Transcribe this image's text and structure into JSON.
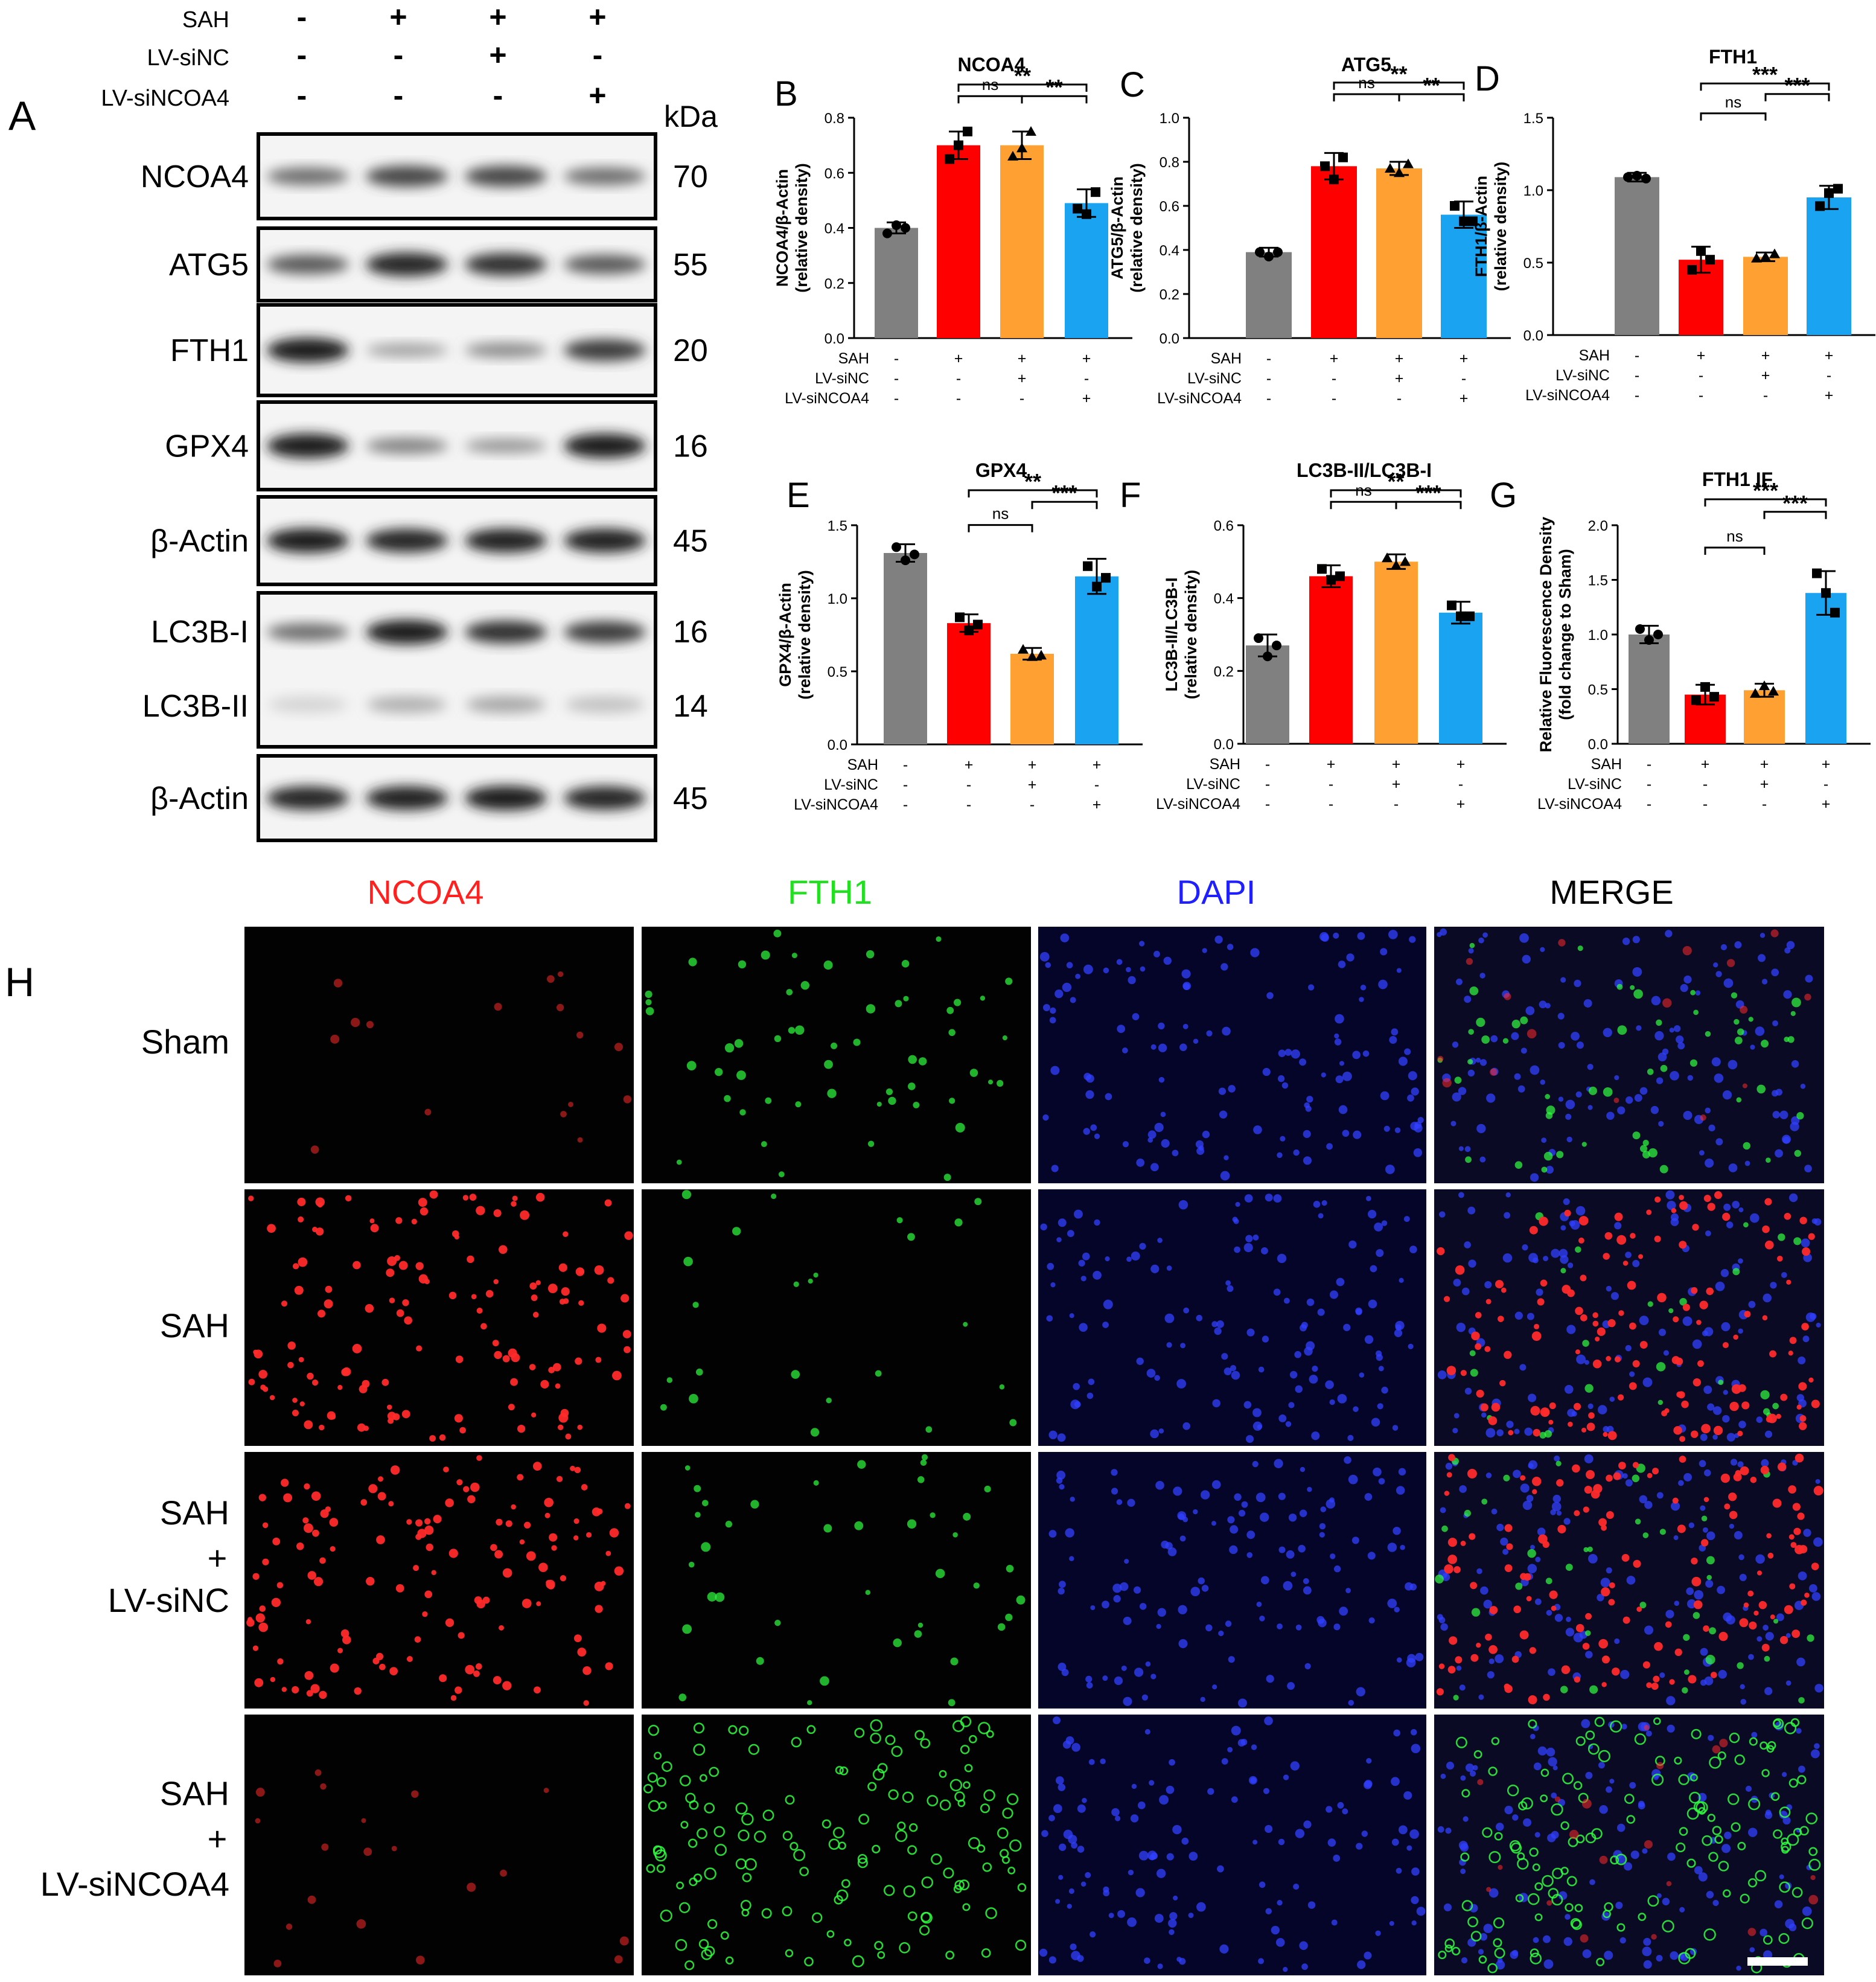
{
  "panel_letters": {
    "A": "A",
    "B": "B",
    "C": "C",
    "D": "D",
    "E": "E",
    "F": "F",
    "G": "G",
    "H": "H"
  },
  "western_blot": {
    "condition_labels": [
      "SAH",
      "LV-siNC",
      "LV-siNCOA4"
    ],
    "condition_signs": [
      [
        "-",
        "+",
        "+",
        "+"
      ],
      [
        "-",
        "-",
        "+",
        "-"
      ],
      [
        "-",
        "-",
        "-",
        "+"
      ]
    ],
    "kda_label": "kDa",
    "bands": [
      {
        "protein": "NCOA4",
        "kda": "70",
        "intensity": [
          0.55,
          0.75,
          0.75,
          0.55
        ]
      },
      {
        "protein": "ATG5",
        "kda": "55",
        "intensity": [
          0.65,
          0.9,
          0.85,
          0.65
        ]
      },
      {
        "protein": "FTH1",
        "kda": "20",
        "intensity": [
          0.95,
          0.3,
          0.4,
          0.8
        ]
      },
      {
        "protein": "GPX4",
        "kda": "16",
        "intensity": [
          0.95,
          0.45,
          0.35,
          0.95
        ]
      },
      {
        "protein": "β-Actin",
        "kda": "45",
        "intensity": [
          0.95,
          0.9,
          0.92,
          0.92
        ]
      },
      {
        "protein": "LC3B-I",
        "kda": "16",
        "intensity": [
          0.55,
          0.95,
          0.85,
          0.8
        ],
        "protein2": "LC3B-II",
        "kda2": "14",
        "intensity2": [
          0.15,
          0.35,
          0.4,
          0.25
        ]
      },
      {
        "protein": "β-Actin",
        "kda": "45",
        "intensity": [
          0.9,
          0.92,
          0.95,
          0.9
        ]
      }
    ]
  },
  "treatment_rows": [
    "SAH",
    "LV-siNC",
    "LV-siNCOA4"
  ],
  "treatment_signs": [
    [
      "-",
      "+",
      "+",
      "+"
    ],
    [
      "-",
      "-",
      "+",
      "-"
    ],
    [
      "-",
      "-",
      "-",
      "+"
    ]
  ],
  "colors": {
    "sham": "#808080",
    "sah": "#ff0000",
    "siNC": "#ffa033",
    "siNCOA4": "#1aa3f0"
  },
  "chart_data": [
    {
      "panel": "B",
      "type": "bar",
      "title": "NCOA4",
      "ylabel": "NCOA4/β-Actin",
      "ylabel2": "(relative density)",
      "ylim": [
        0,
        0.8
      ],
      "yticks": [
        0.0,
        0.2,
        0.4,
        0.6,
        0.8
      ],
      "tick_labels": [
        "0.0",
        "0.2",
        "0.4",
        "0.6",
        "0.8"
      ],
      "values": [
        0.4,
        0.7,
        0.7,
        0.49
      ],
      "errors": [
        0.02,
        0.05,
        0.05,
        0.05
      ],
      "points": [
        [
          0.38,
          0.41,
          0.4
        ],
        [
          0.65,
          0.7,
          0.75
        ],
        [
          0.66,
          0.69,
          0.75
        ],
        [
          0.47,
          0.45,
          0.53
        ]
      ],
      "comparisons": [
        {
          "from": 1,
          "to": 2,
          "label": "ns",
          "level": 0.88
        },
        {
          "from": 2,
          "to": 3,
          "label": "**",
          "level": 0.88
        },
        {
          "from": 1,
          "to": 3,
          "label": "**",
          "level": 1.0
        }
      ]
    },
    {
      "panel": "C",
      "type": "bar",
      "title": "ATG5",
      "ylabel": "ATG5/β-Actin",
      "ylabel2": "(relative density)",
      "ylim": [
        0,
        1.0
      ],
      "yticks": [
        0.0,
        0.2,
        0.4,
        0.6,
        0.8,
        1.0
      ],
      "tick_labels": [
        "0.0",
        "0.2",
        "0.4",
        "0.6",
        "0.8",
        "1.0"
      ],
      "values": [
        0.39,
        0.78,
        0.77,
        0.56
      ],
      "errors": [
        0.02,
        0.06,
        0.03,
        0.06
      ],
      "points": [
        [
          0.39,
          0.37,
          0.39
        ],
        [
          0.78,
          0.72,
          0.82
        ],
        [
          0.77,
          0.75,
          0.79
        ],
        [
          0.6,
          0.53,
          0.53
        ]
      ],
      "comparisons": [
        {
          "from": 1,
          "to": 2,
          "label": "ns",
          "level": 0.9
        },
        {
          "from": 2,
          "to": 3,
          "label": "**",
          "level": 0.9
        },
        {
          "from": 1,
          "to": 3,
          "label": "**",
          "level": 1.02
        }
      ]
    },
    {
      "panel": "D",
      "type": "bar",
      "title": "FTH1",
      "ylabel": "FTH1/β-Actin",
      "ylabel2": "(relative density)",
      "ylim": [
        0,
        1.5
      ],
      "yticks": [
        0.0,
        0.5,
        1.0,
        1.5
      ],
      "tick_labels": [
        "0.0",
        "0.5",
        "1.0",
        "1.5"
      ],
      "values": [
        1.09,
        0.52,
        0.54,
        0.95
      ],
      "errors": [
        0.03,
        0.09,
        0.03,
        0.08
      ],
      "points": [
        [
          1.09,
          1.1,
          1.08
        ],
        [
          0.45,
          0.58,
          0.52
        ],
        [
          0.53,
          0.54,
          0.56
        ],
        [
          0.89,
          0.98,
          1.01
        ]
      ],
      "comparisons": [
        {
          "from": 1,
          "to": 2,
          "label": "ns",
          "level": 0.62
        },
        {
          "from": 2,
          "to": 3,
          "label": "***",
          "level": 0.82
        },
        {
          "from": 1,
          "to": 3,
          "label": "***",
          "level": 0.93
        }
      ]
    },
    {
      "panel": "E",
      "type": "bar",
      "title": "GPX4",
      "ylabel": "GPX4/β-Actin",
      "ylabel2": "(relative density)",
      "ylim": [
        0,
        1.5
      ],
      "yticks": [
        0.0,
        0.5,
        1.0,
        1.5
      ],
      "tick_labels": [
        "0.0",
        "0.5",
        "1.0",
        "1.5"
      ],
      "values": [
        1.31,
        0.83,
        0.62,
        1.15
      ],
      "errors": [
        0.06,
        0.06,
        0.04,
        0.12
      ],
      "points": [
        [
          1.35,
          1.26,
          1.3
        ],
        [
          0.87,
          0.78,
          0.82
        ],
        [
          0.65,
          0.6,
          0.61
        ],
        [
          1.22,
          1.08,
          1.14
        ]
      ],
      "comparisons": [
        {
          "from": 1,
          "to": 2,
          "label": "ns",
          "level": 0.64
        },
        {
          "from": 2,
          "to": 3,
          "label": "***",
          "level": 0.88
        },
        {
          "from": 1,
          "to": 3,
          "label": "**",
          "level": 1.0
        }
      ]
    },
    {
      "panel": "F",
      "type": "bar",
      "title": "LC3B-II/LC3B-I",
      "ylabel": "LC3B-II/LC3B-I",
      "ylabel2": "(relative density)",
      "ylim": [
        0,
        0.6
      ],
      "yticks": [
        0.0,
        0.2,
        0.4,
        0.6
      ],
      "tick_labels": [
        "0.0",
        "0.2",
        "0.4",
        "0.6"
      ],
      "values": [
        0.27,
        0.46,
        0.5,
        0.36
      ],
      "errors": [
        0.03,
        0.03,
        0.02,
        0.03
      ],
      "points": [
        [
          0.29,
          0.24,
          0.27
        ],
        [
          0.48,
          0.45,
          0.46
        ],
        [
          0.51,
          0.49,
          0.5
        ],
        [
          0.38,
          0.35,
          0.35
        ]
      ],
      "comparisons": [
        {
          "from": 1,
          "to": 2,
          "label": "ns",
          "level": 0.88
        },
        {
          "from": 2,
          "to": 3,
          "label": "***",
          "level": 0.88
        },
        {
          "from": 1,
          "to": 3,
          "label": "**",
          "level": 1.0
        }
      ]
    },
    {
      "panel": "G",
      "type": "bar",
      "title": "FTH1 IF",
      "ylabel": "Relative Fluorescence Density",
      "ylabel2": "(fold change to Sham)",
      "ylim": [
        0,
        2.0
      ],
      "yticks": [
        0.0,
        0.5,
        1.0,
        1.5,
        2.0
      ],
      "tick_labels": [
        "0.0",
        "0.5",
        "1.0",
        "1.5",
        "2.0"
      ],
      "values": [
        1.0,
        0.45,
        0.49,
        1.38
      ],
      "errors": [
        0.08,
        0.09,
        0.06,
        0.2
      ],
      "points": [
        [
          1.05,
          0.95,
          1.0
        ],
        [
          0.4,
          0.52,
          0.43
        ],
        [
          0.46,
          0.53,
          0.48
        ],
        [
          1.56,
          1.38,
          1.2
        ]
      ],
      "comparisons": [
        {
          "from": 1,
          "to": 2,
          "label": "ns",
          "level": 0.5
        },
        {
          "from": 2,
          "to": 3,
          "label": "***",
          "level": 0.87
        },
        {
          "from": 1,
          "to": 3,
          "label": "***",
          "level": 1.0
        }
      ]
    }
  ],
  "immunofluorescence": {
    "channels": [
      {
        "label": "NCOA4",
        "color": "#ff2020"
      },
      {
        "label": "FTH1",
        "color": "#20e020"
      },
      {
        "label": "DAPI",
        "color": "#2020ff"
      },
      {
        "label": "MERGE",
        "color": "#000000"
      }
    ],
    "rows": [
      {
        "label": [
          "Sham"
        ]
      },
      {
        "label": [
          "SAH"
        ]
      },
      {
        "label": [
          "SAH",
          "+",
          "LV-siNC"
        ]
      },
      {
        "label": [
          "SAH",
          "+",
          "LV-siNCOA4"
        ]
      }
    ]
  }
}
